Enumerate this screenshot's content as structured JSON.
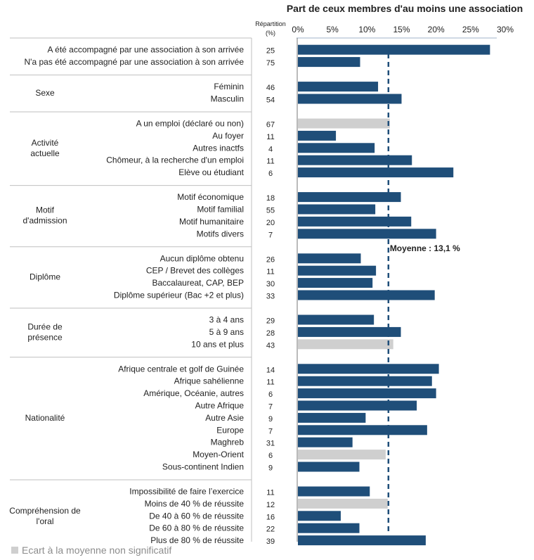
{
  "chart_data": {
    "type": "bar",
    "orientation": "horizontal",
    "title": "Part de ceux membres d'au moins une association",
    "repartition_header": [
      "Répartition",
      "(%)"
    ],
    "xlim": [
      0,
      30
    ],
    "xticks": [
      0,
      5,
      10,
      15,
      20,
      25,
      30
    ],
    "tick_suffix": "%",
    "mean": 13.1,
    "mean_label": "Moyenne : 13,1 %",
    "colors": {
      "significant": "#1f4e79",
      "non_significant": "#cfcfcf",
      "mean_line": "#1f4e79"
    },
    "groups": [
      {
        "label": "",
        "items": [
          {
            "label": "A été accompagné par une association à son arrivée",
            "repartition": "25",
            "value": 27.8,
            "significant": true
          },
          {
            "label": "N'a pas été accompagné par une association à son arrivée",
            "repartition": "75",
            "value": 9.0,
            "significant": true
          }
        ]
      },
      {
        "label": "Sexe",
        "items": [
          {
            "label": "Féminin",
            "repartition": "46",
            "value": 11.6,
            "significant": true
          },
          {
            "label": "Masculin",
            "repartition": "54",
            "value": 15.0,
            "significant": true
          }
        ]
      },
      {
        "label": "Activité actuelle",
        "items": [
          {
            "label": "A un emploi (déclaré ou non)",
            "repartition": "67",
            "value": 13.3,
            "significant": false
          },
          {
            "label": "Au foyer",
            "repartition": "11",
            "value": 5.5,
            "significant": true
          },
          {
            "label": "Autres inactfs",
            "repartition": "4",
            "value": 11.1,
            "significant": true
          },
          {
            "label": "Chômeur, à la recherche d'un emploi",
            "repartition": "11",
            "value": 16.5,
            "significant": true
          },
          {
            "label": "Elève ou étudiant",
            "repartition": "6",
            "value": 22.5,
            "significant": true
          }
        ]
      },
      {
        "label": "Motif d'admission",
        "items": [
          {
            "label": "Motif économique",
            "repartition": "18",
            "value": 14.9,
            "significant": true
          },
          {
            "label": "Motif familial",
            "repartition": "55",
            "value": 11.2,
            "significant": true
          },
          {
            "label": "Motif humanitaire",
            "repartition": "20",
            "value": 16.4,
            "significant": true
          },
          {
            "label": "Motifs divers",
            "repartition": "7",
            "value": 20.0,
            "significant": true
          }
        ]
      },
      {
        "label": "Diplôme",
        "items": [
          {
            "label": "Aucun diplôme obtenu",
            "repartition": "26",
            "value": 9.1,
            "significant": true
          },
          {
            "label": "CEP / Brevet des collèges",
            "repartition": "11",
            "value": 11.3,
            "significant": true
          },
          {
            "label": "Baccalaureat,  CAP, BEP",
            "repartition": "30",
            "value": 10.8,
            "significant": true
          },
          {
            "label": "Diplôme supérieur (Bac +2 et plus)",
            "repartition": "33",
            "value": 19.8,
            "significant": true
          }
        ]
      },
      {
        "label": "Durée de présence",
        "items": [
          {
            "label": "3 à 4 ans",
            "repartition": "29",
            "value": 11.0,
            "significant": true
          },
          {
            "label": "5 à 9 ans",
            "repartition": "28",
            "value": 14.9,
            "significant": true
          },
          {
            "label": "10 ans et plus",
            "repartition": "43",
            "value": 13.8,
            "significant": false
          }
        ]
      },
      {
        "label": "Nationalité",
        "items": [
          {
            "label": "Afrique centrale et golf de Guinée",
            "repartition": "14",
            "value": 20.4,
            "significant": true
          },
          {
            "label": "Afrique sahélienne",
            "repartition": "11",
            "value": 19.4,
            "significant": true
          },
          {
            "label": "Amérique, Océanie, autres",
            "repartition": "6",
            "value": 20.0,
            "significant": true
          },
          {
            "label": "Autre Afrique",
            "repartition": "7",
            "value": 17.2,
            "significant": true
          },
          {
            "label": "Autre Asie",
            "repartition": "9",
            "value": 9.8,
            "significant": true
          },
          {
            "label": "Europe",
            "repartition": "7",
            "value": 18.7,
            "significant": true
          },
          {
            "label": "Maghreb",
            "repartition": "31",
            "value": 7.9,
            "significant": true
          },
          {
            "label": "Moyen-Orient",
            "repartition": "6",
            "value": 12.7,
            "significant": false
          },
          {
            "label": "Sous-continent Indien",
            "repartition": "9",
            "value": 8.9,
            "significant": true
          }
        ]
      },
      {
        "label": "Compréhension de l'oral",
        "items": [
          {
            "label": "Impossibilité de faire l’exercice",
            "repartition": "11",
            "value": 10.4,
            "significant": true
          },
          {
            "label": "Moins de 40 % de réussite",
            "repartition": "12",
            "value": 13.0,
            "significant": false
          },
          {
            "label": "De 40 à 60 % de réussite",
            "repartition": "16",
            "value": 6.2,
            "significant": true
          },
          {
            "label": "De 60 à 80 % de réussite",
            "repartition": "22",
            "value": 8.9,
            "significant": true
          },
          {
            "label": "Plus de 80 % de réussite",
            "repartition": "39",
            "value": 18.5,
            "significant": true
          }
        ]
      }
    ],
    "legend": "Ecart à la moyenne non significatif"
  }
}
